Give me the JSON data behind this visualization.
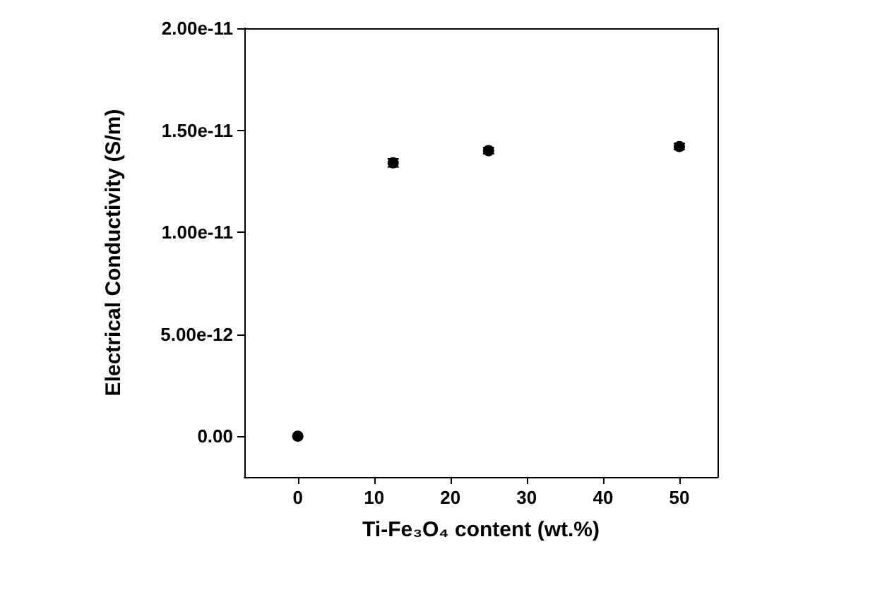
{
  "chart_data": {
    "type": "scatter",
    "xlabel": "Ti-Fe₃O₄ content (wt.%)",
    "ylabel": "Electrical Conductivity (S/m)",
    "x": [
      0,
      12.5,
      25,
      50
    ],
    "series": [
      {
        "color": "#000000",
        "values": [
          0,
          1.34e-11,
          1.4e-11,
          1.42e-11
        ],
        "errors": [
          null,
          2e-13,
          1.5e-13,
          1.5e-13
        ]
      }
    ],
    "xlim": [
      -7,
      55
    ],
    "xticks": [
      0,
      10,
      20,
      30,
      40,
      50
    ],
    "ylim": [
      -2e-12,
      2e-11
    ],
    "yticks": [
      {
        "value": 0,
        "label": "0.00"
      },
      {
        "value": 5e-12,
        "label": "5.00e-12"
      },
      {
        "value": 1e-11,
        "label": "1.00e-11"
      },
      {
        "value": 1.5e-11,
        "label": "1.50e-11"
      },
      {
        "value": 2e-11,
        "label": "2.00e-11"
      }
    ],
    "marker": "circle"
  }
}
